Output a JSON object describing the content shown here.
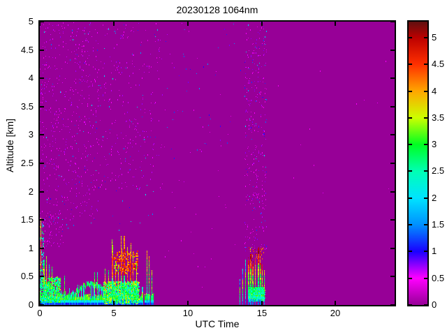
{
  "chart_data": {
    "type": "heatmap",
    "title": "20230128 1064nm",
    "xlabel": "UTC Time",
    "ylabel": "Altitude [km]",
    "x_range": [
      0,
      24
    ],
    "y_range": [
      0,
      5
    ],
    "x_ticks": [
      0,
      5,
      10,
      15,
      20
    ],
    "y_ticks": [
      0,
      0.5,
      1,
      1.5,
      2,
      2.5,
      3,
      3.5,
      4,
      4.5,
      5
    ],
    "grid": false,
    "legend": "none",
    "colorbar": {
      "range": [
        0,
        5.3
      ],
      "ticks": [
        0,
        0.5,
        1,
        1.5,
        2,
        2.5,
        3,
        3.5,
        4,
        4.5,
        5
      ],
      "position": "right"
    },
    "colormap": [
      [
        0.0,
        "#970097"
      ],
      [
        0.5,
        "#ff00ff"
      ],
      [
        1.0,
        "#1a00ff"
      ],
      [
        1.5,
        "#0090ff"
      ],
      [
        2.0,
        "#00e4ff"
      ],
      [
        2.5,
        "#00ffb4"
      ],
      [
        3.0,
        "#00ff22"
      ],
      [
        3.5,
        "#ccff00"
      ],
      [
        4.0,
        "#ffa600"
      ],
      [
        4.5,
        "#ff3000"
      ],
      [
        5.0,
        "#bc0000"
      ],
      [
        5.3,
        "#601010"
      ]
    ],
    "background_value": 0,
    "noise_regions": [
      {
        "t": [
          0,
          4
        ],
        "alt": [
          1.5,
          5
        ],
        "n": 520,
        "vals": [
          0.3,
          0.75
        ]
      },
      {
        "t": [
          4,
          8.3
        ],
        "alt": [
          2,
          5
        ],
        "n": 250,
        "vals": [
          0.3,
          0.75
        ]
      },
      {
        "t": [
          0,
          1.6
        ],
        "alt": [
          1.0,
          1.6
        ],
        "n": 70,
        "vals": [
          0.3,
          0.7
        ]
      },
      {
        "t": [
          0,
          8
        ],
        "alt": [
          1.3,
          5
        ],
        "n": 110,
        "vals": [
          0.9,
          2.2
        ]
      },
      {
        "t": [
          8.3,
          13.6
        ],
        "alt": [
          2.5,
          5
        ],
        "n": 60,
        "vals": [
          0.3,
          1.6
        ]
      },
      {
        "t": [
          13.85,
          15.35
        ],
        "alt": [
          0.95,
          5
        ],
        "n": 300,
        "vals": [
          0.3,
          0.8
        ]
      },
      {
        "t": [
          13.85,
          15.35
        ],
        "alt": [
          1.0,
          5
        ],
        "n": 60,
        "vals": [
          0.9,
          2.2
        ]
      },
      {
        "t": [
          14.1,
          15.15
        ],
        "alt": [
          0.8,
          1.02
        ],
        "n": 45,
        "vals": [
          3.8,
          5.1
        ]
      },
      {
        "t": [
          15.5,
          24
        ],
        "alt": [
          1.2,
          5
        ],
        "n": 12,
        "vals": [
          0.3,
          0.6
        ]
      },
      {
        "t": [
          8.3,
          13.6
        ],
        "alt": [
          0.3,
          2.5
        ],
        "n": 20,
        "vals": [
          0.3,
          0.6
        ]
      }
    ],
    "left_edge_column": {
      "t": [
        0,
        0.28
      ],
      "alt": [
        0.05,
        1.45
      ],
      "n": 110,
      "vals": [
        1.4,
        3.6
      ]
    },
    "surface_layer": {
      "t": [
        0,
        7.72
      ],
      "base_top": [
        0.1,
        0.2
      ],
      "wave_center": 0.26,
      "wave_amp": 0.1,
      "wave_thickness": 0.07
    },
    "blobs": [
      {
        "t": [
          4.3,
          6.7
        ],
        "alt": [
          0.03,
          0.42
        ],
        "n": 900,
        "vals": [
          2.3,
          3.7
        ]
      },
      {
        "t": [
          14.1,
          15.18
        ],
        "alt": [
          0.07,
          0.32
        ],
        "n": 450,
        "vals": [
          2.0,
          3.4
        ]
      },
      {
        "t": [
          0.05,
          1.35
        ],
        "alt": [
          0.05,
          0.5
        ],
        "n": 350,
        "vals": [
          2.2,
          3.5
        ]
      },
      {
        "t": [
          5.0,
          6.6
        ],
        "alt": [
          0.55,
          0.95
        ],
        "n": 160,
        "vals": [
          3.8,
          4.9
        ]
      }
    ],
    "plumes": [
      [
        0.12,
        0.06,
        1.4,
        4.2,
        "mid"
      ],
      [
        0.3,
        0.08,
        0.85,
        3.4,
        "mid"
      ],
      [
        0.5,
        0.06,
        0.95,
        3.8,
        "mid"
      ],
      [
        0.68,
        0.05,
        0.62,
        3.2,
        "mid"
      ],
      [
        0.88,
        0.07,
        0.8,
        3.6,
        "mid"
      ],
      [
        1.06,
        0.05,
        0.55,
        3.0,
        "mid"
      ],
      [
        1.25,
        0.05,
        0.45,
        3.0,
        "mid"
      ],
      [
        1.7,
        0.06,
        0.5,
        3.2,
        "mid"
      ],
      [
        2.05,
        0.05,
        0.35,
        2.8,
        "mid"
      ],
      [
        2.6,
        0.05,
        0.4,
        3.0,
        "mid"
      ],
      [
        3.0,
        0.04,
        0.32,
        2.8,
        "mid"
      ],
      [
        3.45,
        0.05,
        0.4,
        3.0,
        "mid"
      ],
      [
        3.75,
        0.07,
        0.58,
        3.5,
        "mid"
      ],
      [
        3.95,
        0.06,
        0.55,
        3.4,
        "mid"
      ],
      [
        4.45,
        0.07,
        0.75,
        4.0,
        "mid"
      ],
      [
        4.7,
        0.06,
        0.6,
        3.6,
        "mid"
      ],
      [
        4.95,
        0.08,
        1.05,
        4.3,
        "mid"
      ],
      [
        5.15,
        0.06,
        0.9,
        4.0,
        "mid"
      ],
      [
        5.35,
        0.05,
        0.72,
        3.8,
        "mid"
      ],
      [
        5.55,
        0.08,
        1.1,
        4.5,
        "mid"
      ],
      [
        5.75,
        0.09,
        1.18,
        4.7,
        "mid"
      ],
      [
        5.95,
        0.07,
        1.05,
        4.4,
        "mid"
      ],
      [
        6.15,
        0.08,
        1.0,
        4.6,
        "mid"
      ],
      [
        6.35,
        0.06,
        0.85,
        4.2,
        "mid"
      ],
      [
        6.55,
        0.05,
        0.68,
        3.8,
        "mid"
      ],
      [
        6.92,
        0.04,
        0.35,
        2.6,
        "rise"
      ],
      [
        7.0,
        0.04,
        0.3,
        2.4,
        "rise"
      ],
      [
        7.28,
        0.04,
        0.95,
        3.8,
        "rise"
      ],
      [
        7.42,
        0.04,
        0.85,
        4.0,
        "rise"
      ],
      [
        7.58,
        0.04,
        0.7,
        3.4,
        "rise"
      ],
      [
        13.55,
        0.04,
        0.55,
        2.0,
        "rise"
      ],
      [
        13.75,
        0.04,
        0.65,
        2.2,
        "rise"
      ],
      [
        13.95,
        0.05,
        0.72,
        2.4,
        "rise"
      ],
      [
        14.15,
        0.08,
        0.8,
        4.6,
        "rise"
      ],
      [
        14.3,
        0.1,
        0.9,
        4.9,
        "rise"
      ],
      [
        14.45,
        0.09,
        0.85,
        4.7,
        "rise"
      ],
      [
        14.62,
        0.06,
        0.75,
        4.3,
        "rise"
      ],
      [
        14.8,
        0.1,
        0.92,
        5.0,
        "rise"
      ],
      [
        14.95,
        0.09,
        0.88,
        4.8,
        "rise"
      ],
      [
        15.08,
        0.07,
        0.8,
        4.5,
        "rise"
      ],
      [
        15.22,
        0.04,
        0.6,
        3.6,
        "rise"
      ]
    ]
  }
}
